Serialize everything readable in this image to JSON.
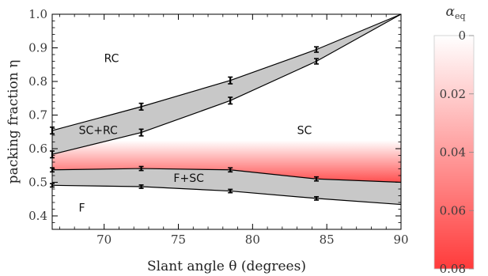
{
  "chart_data": {
    "type": "area",
    "xlabel": "Slant angle θ (degrees)",
    "ylabel": "packing fraction η",
    "xlim": [
      66.5,
      90
    ],
    "ylim": [
      0.36,
      1.0
    ],
    "x_ticks": [
      "70",
      "75",
      "80",
      "85",
      "90"
    ],
    "y_ticks": [
      "0.4",
      "0.5",
      "0.6",
      "0.7",
      "0.8",
      "0.9",
      "1.0"
    ],
    "x": [
      66.5,
      72.5,
      78.5,
      84.3,
      90
    ],
    "series": [
      {
        "values": [
          0.654,
          0.725,
          0.803,
          0.895,
          1.0
        ],
        "errors": [
          0.01,
          0.01,
          0.01,
          0.008,
          0
        ]
      },
      {
        "values": [
          0.583,
          0.648,
          0.743,
          0.86,
          1.0
        ],
        "errors": [
          0.01,
          0.01,
          0.01,
          0.008,
          0
        ]
      },
      {
        "values": [
          0.537,
          0.541,
          0.537,
          0.51,
          0.5
        ],
        "errors": [
          0.006,
          0.006,
          0.006,
          0.006,
          0
        ]
      },
      {
        "values": [
          0.491,
          0.487,
          0.474,
          0.452,
          0.434
        ],
        "errors": [
          0.005,
          0.005,
          0.005,
          0.005,
          0
        ]
      }
    ],
    "regions": [
      "RC",
      "SC+RC",
      "SC",
      "F+SC",
      "F"
    ],
    "shaded_band_color": "#c8c8c8",
    "colorbar": {
      "label": "α_eq",
      "ticks": [
        "0",
        "0.02",
        "0.04",
        "0.06",
        "0.08"
      ],
      "range": [
        0,
        0.08
      ],
      "color_low": "#ffffff",
      "color_high": "#ff3b3b"
    },
    "grid": false
  }
}
